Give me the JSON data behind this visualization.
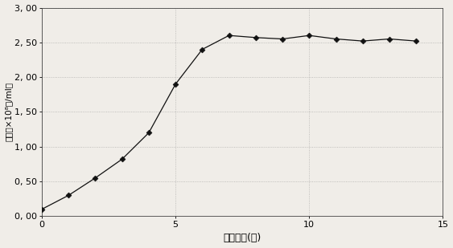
{
  "x": [
    0,
    1,
    2,
    3,
    4,
    5,
    6,
    7,
    8,
    9,
    10,
    11,
    12,
    13,
    14
  ],
  "y": [
    0.1,
    0.3,
    0.55,
    0.82,
    1.2,
    1.9,
    2.4,
    2.6,
    2.57,
    2.55,
    2.6,
    2.55,
    2.52,
    2.55,
    2.52
  ],
  "xlabel": "培养时间(天)",
  "ylabel": "菌数（×10⁸个/ml）",
  "ylim": [
    0.0,
    3.0
  ],
  "xlim": [
    0,
    15
  ],
  "ytick_labels": [
    "0, 00",
    "0, 50",
    "1, 00",
    "1, 50",
    "2, 00",
    "2, 50",
    "3, 00"
  ],
  "ytick_vals": [
    0.0,
    0.5,
    1.0,
    1.5,
    2.0,
    2.5,
    3.0
  ],
  "xtick_labels": [
    "0",
    "5",
    "10",
    "15"
  ],
  "xtick_vals": [
    0,
    5,
    10,
    15
  ],
  "line_color": "#111111",
  "marker": "D",
  "marker_size": 3.5,
  "marker_color": "#111111",
  "background_color": "#f0ede8",
  "grid_color": "#888888",
  "fig_width": 5.63,
  "fig_height": 3.09,
  "dpi": 100
}
